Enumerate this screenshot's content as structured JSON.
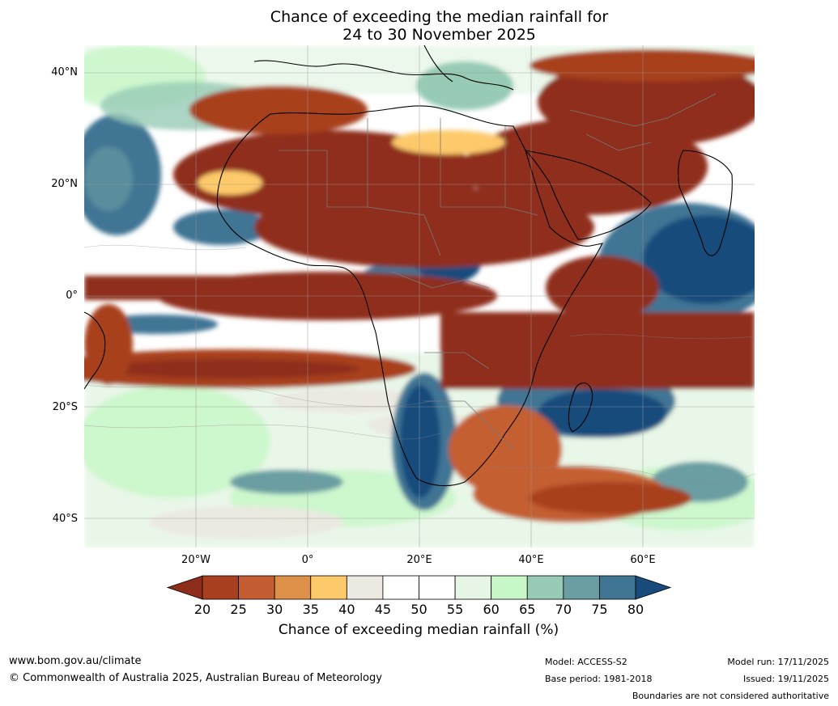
{
  "title": {
    "line1": "Chance of exceeding the median rainfall for",
    "line2": "24 to 30 November 2025"
  },
  "map": {
    "lat_labels": [
      "40°N",
      "20°N",
      "0°",
      "20°S",
      "40°S"
    ],
    "lon_labels": [
      "20°W",
      "0°",
      "20°E",
      "40°E",
      "60°E"
    ]
  },
  "colorbar": {
    "title": "Chance of exceeding median rainfall (%)",
    "ticks": [
      "20",
      "25",
      "30",
      "35",
      "40",
      "45",
      "50",
      "55",
      "60",
      "65",
      "70",
      "75",
      "80"
    ],
    "colors": {
      "lt20": "#8f2d1c",
      "b20_25": "#a8401f",
      "b25_30": "#c45e32",
      "b30_35": "#df9048",
      "b35_40": "#fdc96b",
      "b40_45": "#ece8e2",
      "b45_55": "#ffffff",
      "b55_60": "#e6f5e6",
      "b60_65": "#c7f7c7",
      "b65_70": "#97cbb5",
      "b70_75": "#6a9ea3",
      "b75_80": "#417594",
      "gt80": "#164b7c"
    }
  },
  "footer": {
    "website": "www.bom.gov.au/climate",
    "copyright": "© Commonwealth of Australia 2025, Australian Bureau of Meteorology",
    "model": "Model: ACCESS-S2",
    "base_period": "Base period: 1981-2018",
    "model_run": "Model run: 17/11/2025",
    "issued": "Issued: 19/11/2025",
    "disclaimer": "Boundaries are not considered authoritative"
  }
}
